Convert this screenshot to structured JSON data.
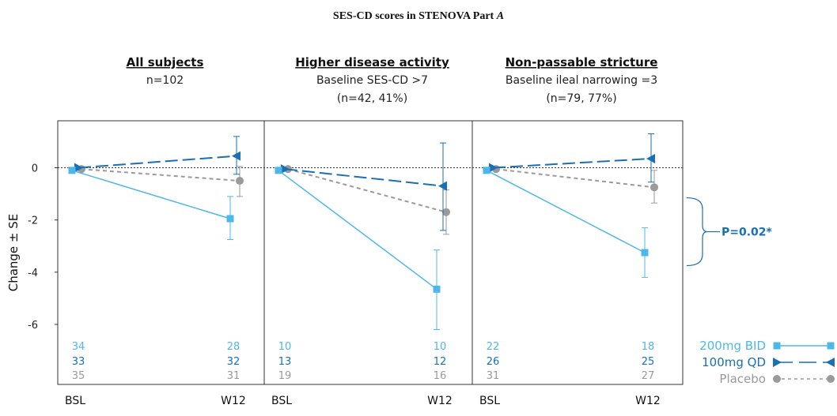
{
  "chart_data": {
    "type": "line",
    "title": "SES-CD scores in STENOVA Part A",
    "ylabel": "Change ± SE",
    "ylim": [
      -8.3,
      1.8
    ],
    "yticks": [
      0,
      -2,
      -4,
      -6
    ],
    "x_categories": [
      "BSL",
      "W12"
    ],
    "grid": false,
    "legend_position": "bottom-right",
    "series_styles": [
      {
        "name": "200mg BID",
        "color": "#4db8e8",
        "line": "solid",
        "marker": "square"
      },
      {
        "name": "100mg QD",
        "color": "#1a6fb5",
        "line": "dashed",
        "marker": "triangle"
      },
      {
        "name": "Placebo",
        "color": "#9a9a9a",
        "line": "dotted",
        "marker": "circle"
      }
    ],
    "panels": [
      {
        "title": "All subjects",
        "subtitle_lines": [
          "n=102"
        ],
        "series": [
          {
            "name": "200mg BID",
            "values": [
              -0.1,
              -1.95
            ],
            "se_low": -2.75,
            "se_high": -1.1,
            "n": [
              "34",
              "28"
            ]
          },
          {
            "name": "100mg QD",
            "values": [
              0.0,
              0.45
            ],
            "se_low": -0.25,
            "se_high": 1.2,
            "n": [
              "33",
              "32"
            ]
          },
          {
            "name": "Placebo",
            "values": [
              -0.05,
              -0.5
            ],
            "se_low": -1.1,
            "se_high": 0.05,
            "n": [
              "35",
              "31"
            ]
          }
        ]
      },
      {
        "title": "Higher disease activity",
        "subtitle_lines": [
          "Baseline SES-CD >7",
          "(n=42, 41%)"
        ],
        "series": [
          {
            "name": "200mg BID",
            "values": [
              -0.1,
              -4.65
            ],
            "se_low": -6.2,
            "se_high": -3.15,
            "n": [
              "10",
              "10"
            ]
          },
          {
            "name": "100mg QD",
            "values": [
              -0.05,
              -0.7
            ],
            "se_low": -2.4,
            "se_high": 0.95,
            "n": [
              "13",
              "12"
            ]
          },
          {
            "name": "Placebo",
            "values": [
              -0.05,
              -1.7
            ],
            "se_low": -2.55,
            "se_high": -0.85,
            "n": [
              "19",
              "16"
            ]
          }
        ]
      },
      {
        "title": "Non-passable stricture",
        "subtitle_lines": [
          "Baseline ileal narrowing =3",
          "(n=79, 77%)"
        ],
        "series": [
          {
            "name": "200mg BID",
            "values": [
              -0.1,
              -3.25
            ],
            "se_low": -4.2,
            "se_high": -2.3,
            "n": [
              "22",
              "18"
            ]
          },
          {
            "name": "100mg QD",
            "values": [
              0.0,
              0.35
            ],
            "se_low": -0.55,
            "se_high": 1.3,
            "n": [
              "26",
              "25"
            ]
          },
          {
            "name": "Placebo",
            "values": [
              -0.05,
              -0.75
            ],
            "se_low": -1.35,
            "se_high": -0.1,
            "n": [
              "31",
              "27"
            ]
          }
        ]
      }
    ],
    "annotation": {
      "text": "P=0.02*",
      "from": -1.15,
      "to": -3.75
    }
  }
}
